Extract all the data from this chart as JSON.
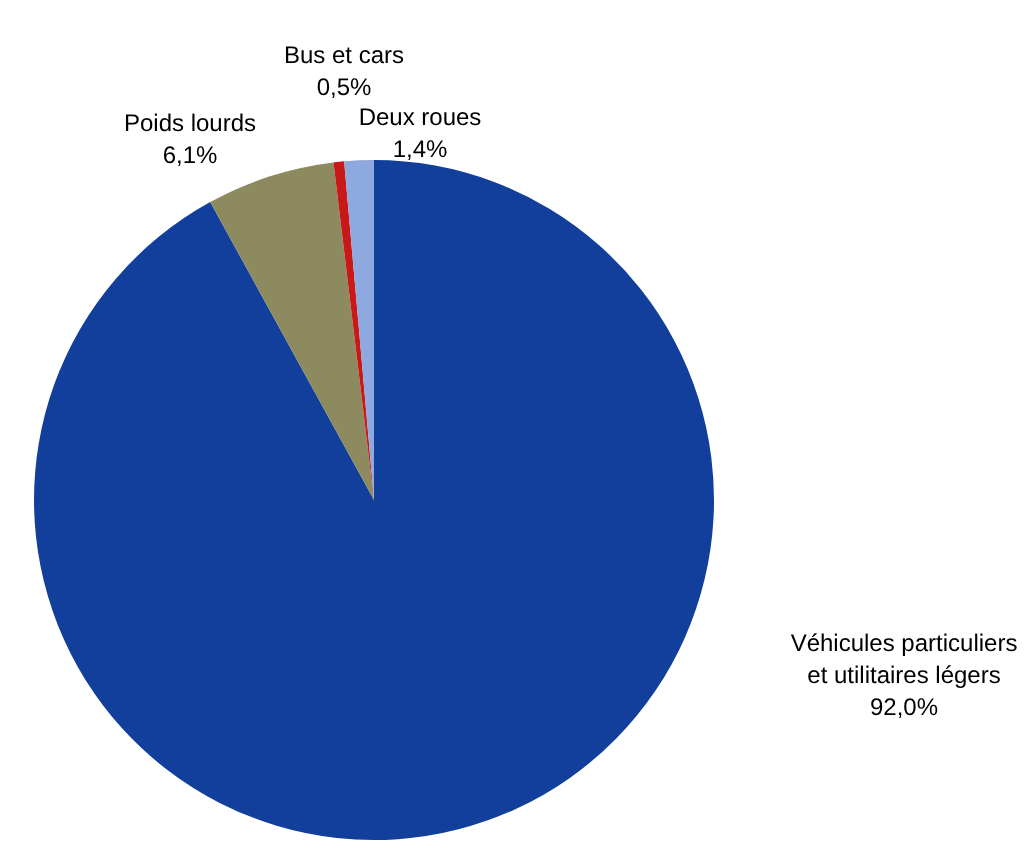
{
  "chart_data": {
    "type": "pie",
    "categories": [
      "Véhicules particuliers et utilitaires légers",
      "Poids lourds",
      "Bus et cars",
      "Deux roues"
    ],
    "values": [
      92.0,
      6.1,
      0.5,
      1.4
    ],
    "value_labels": [
      "92,0%",
      "6,1%",
      "0,5%",
      "1,4%"
    ],
    "colors": [
      "#123f9c",
      "#8d8a60",
      "#c81818",
      "#8ea8e0"
    ],
    "legend": false
  }
}
